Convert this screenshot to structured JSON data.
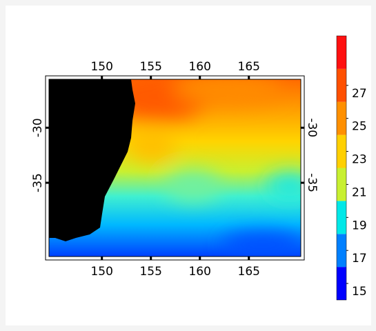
{
  "map": {
    "xlim": [
      144.6,
      170.3
    ],
    "ylim": [
      -41.7,
      -25.6
    ],
    "xticks": [
      150,
      155,
      160,
      165
    ],
    "yticks": [
      -30,
      -35
    ],
    "colorbar": {
      "clim": [
        14,
        30
      ],
      "ticks": [
        15,
        17,
        19,
        21,
        23,
        25,
        27
      ],
      "colors": [
        "#0000ff",
        "#0080ff",
        "#00e8e8",
        "#c8f030",
        "#ffd000",
        "#ff9000",
        "#ff5000",
        "#ff1010"
      ]
    }
  }
}
